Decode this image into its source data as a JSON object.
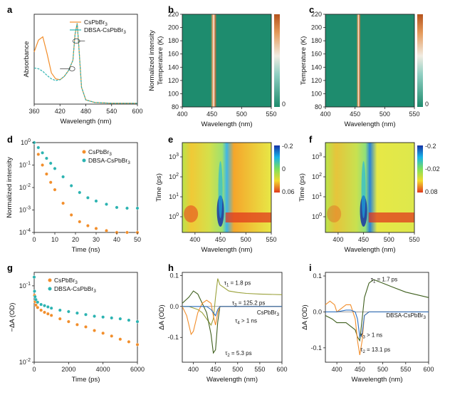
{
  "colors": {
    "orange": "#F28E2B",
    "teal": "#2BB3B1",
    "olive": "#9AA13A",
    "darkgreen": "#3F5F1E",
    "blue": "#2C6FBF"
  },
  "panels": [
    {
      "id": "a",
      "letter": "a"
    },
    {
      "id": "b",
      "letter": "b"
    },
    {
      "id": "c",
      "letter": "c"
    },
    {
      "id": "d",
      "letter": "d"
    },
    {
      "id": "e",
      "letter": "e"
    },
    {
      "id": "f",
      "letter": "f"
    },
    {
      "id": "g",
      "letter": "g"
    },
    {
      "id": "h",
      "letter": "h"
    },
    {
      "id": "i",
      "letter": "i"
    }
  ],
  "chart_data": [
    {
      "panel": "a",
      "type": "line",
      "xlabel": "Wavelength (nm)",
      "ylabel": "Absorbance",
      "xlim": [
        360,
        600
      ],
      "xticks": [
        "360",
        "420",
        "480",
        "540",
        "600"
      ],
      "legend": [
        "CsPbBr3",
        "DBSA-CsPbBr3"
      ],
      "legend_position": "top-right",
      "series": [
        {
          "name": "CsPbBr3",
          "color": "orange",
          "x": [
            360,
            370,
            380,
            390,
            400,
            410,
            420,
            430,
            440,
            450,
            455,
            460,
            465,
            470,
            480,
            500,
            540,
            600
          ],
          "y": [
            0.62,
            0.76,
            0.8,
            0.6,
            0.37,
            0.3,
            0.29,
            0.33,
            0.4,
            0.52,
            0.83,
            0.96,
            0.6,
            0.2,
            0.05,
            0.02,
            0.01,
            0.01
          ]
        },
        {
          "name": "DBSA-CsPbBr3",
          "color": "teal",
          "x": [
            360,
            370,
            380,
            390,
            400,
            410,
            420,
            430,
            440,
            450,
            455,
            460,
            465,
            470,
            480,
            500,
            540,
            600
          ],
          "y": [
            0.43,
            0.42,
            0.39,
            0.34,
            0.3,
            0.28,
            0.29,
            0.33,
            0.4,
            0.52,
            0.83,
            0.96,
            0.6,
            0.2,
            0.05,
            0.02,
            0.01,
            0.01
          ]
        }
      ]
    },
    {
      "panel": "b",
      "type": "heatmap",
      "xlabel": "Wavelength (nm)",
      "ylabel": "Normalized intensity",
      "y2label": "Temperature (K)",
      "xlim": [
        400,
        550
      ],
      "xticks": [
        "400",
        "450",
        "500",
        "550"
      ],
      "ylim": [
        80,
        220
      ],
      "yticks": [
        "80",
        "100",
        "120",
        "140",
        "160",
        "180",
        "200",
        "220"
      ],
      "colorbar_ticks": [
        "0"
      ],
      "peak_center_nm": 453,
      "peak_width_nm": 10
    },
    {
      "panel": "c",
      "type": "heatmap",
      "xlabel": "Wavelength (nm)",
      "y2label": "Temperature (K)",
      "xlim": [
        400,
        550
      ],
      "xticks": [
        "400",
        "450",
        "500",
        "550"
      ],
      "ylim": [
        80,
        220
      ],
      "yticks": [
        "80",
        "100",
        "120",
        "140",
        "160",
        "180",
        "200",
        "220"
      ],
      "colorbar_ticks": [
        "0"
      ],
      "peak_center_nm": 456,
      "peak_width_nm": 7
    },
    {
      "panel": "d",
      "type": "scatter",
      "xlabel": "Time (ns)",
      "ylabel": "Normalized intensity",
      "xlim": [
        0,
        50
      ],
      "xticks": [
        "0",
        "10",
        "20",
        "30",
        "40",
        "50"
      ],
      "yticks": [
        "10-4",
        "10-3",
        "10-2",
        "10-1",
        "100"
      ],
      "ylog": true,
      "ylim": [
        0.0001,
        1
      ],
      "legend": [
        "CsPbBr3",
        "DBSA-CsPbBr3"
      ],
      "legend_position": "top-right",
      "series": [
        {
          "name": "CsPbBr3",
          "color": "orange",
          "x": [
            0,
            2,
            4,
            6,
            8,
            10,
            14,
            18,
            22,
            26,
            30,
            35,
            40,
            45,
            50
          ],
          "y": [
            1,
            0.3,
            0.1,
            0.04,
            0.017,
            0.008,
            0.002,
            0.0006,
            0.0003,
            0.0002,
            0.00015,
            0.00012,
            0.0001,
            0.0001,
            0.0001
          ]
        },
        {
          "name": "DBSA-CsPbBr3",
          "color": "teal",
          "x": [
            0,
            2,
            4,
            6,
            8,
            10,
            14,
            18,
            22,
            26,
            30,
            35,
            40,
            45,
            50
          ],
          "y": [
            1,
            0.6,
            0.35,
            0.2,
            0.12,
            0.07,
            0.03,
            0.012,
            0.006,
            0.0035,
            0.0025,
            0.0018,
            0.0013,
            0.0012,
            0.0012
          ]
        }
      ]
    },
    {
      "panel": "e",
      "type": "heatmap",
      "xlabel": "Wavelength (nm)",
      "ylabel": "Time (ps)",
      "xlim": [
        375,
        550
      ],
      "xticks": [
        "400",
        "450",
        "500",
        "550"
      ],
      "yticks": [
        "100",
        "101",
        "102",
        "103"
      ],
      "colorbar_ticks": [
        "-0.2",
        "0",
        "0.06"
      ]
    },
    {
      "panel": "f",
      "type": "heatmap",
      "xlabel": "Wavelength (nm)",
      "ylabel": "Time (ps)",
      "xlim": [
        375,
        550
      ],
      "xticks": [
        "400",
        "450",
        "500",
        "550"
      ],
      "yticks": [
        "100",
        "101",
        "102",
        "103"
      ],
      "colorbar_ticks": [
        "-0.2",
        "-0.02",
        "0.08"
      ]
    },
    {
      "panel": "g",
      "type": "scatter",
      "xlabel": "Time (ps)",
      "ylabel": "−ΔA (OD)",
      "xlim": [
        0,
        6000
      ],
      "xticks": [
        "0",
        "2000",
        "4000",
        "6000"
      ],
      "yticks": [
        "10-2",
        "10-1"
      ],
      "ylog": true,
      "ylim": [
        0.01,
        0.15
      ],
      "legend": [
        "CsPbBr3",
        "DBSA-CsPbBr3"
      ],
      "legend_position": "top-right",
      "series": [
        {
          "name": "CsPbBr3",
          "color": "orange",
          "x": [
            0,
            20,
            50,
            100,
            200,
            400,
            600,
            800,
            1000,
            1500,
            2000,
            2500,
            3000,
            3500,
            4000,
            4500,
            5000,
            5500,
            6000
          ],
          "y": [
            0.13,
            0.075,
            0.062,
            0.056,
            0.052,
            0.048,
            0.045,
            0.043,
            0.041,
            0.037,
            0.034,
            0.031,
            0.029,
            0.026,
            0.024,
            0.022,
            0.02,
            0.0185,
            0.017
          ]
        },
        {
          "name": "DBSA-CsPbBr3",
          "color": "teal",
          "x": [
            0,
            20,
            50,
            100,
            200,
            400,
            600,
            800,
            1000,
            1500,
            2000,
            2500,
            3000,
            3500,
            4000,
            4500,
            5000,
            5500,
            6000
          ],
          "y": [
            0.13,
            0.085,
            0.072,
            0.066,
            0.061,
            0.057,
            0.055,
            0.053,
            0.051,
            0.048,
            0.046,
            0.044,
            0.042,
            0.04,
            0.039,
            0.038,
            0.037,
            0.0355,
            0.034
          ]
        }
      ]
    },
    {
      "panel": "h",
      "type": "line",
      "xlabel": "Wavelength (nm)",
      "ylabel": "ΔA (OD)",
      "xlim": [
        375,
        600
      ],
      "xticks": [
        "400",
        "450",
        "500",
        "550",
        "600"
      ],
      "ylim": [
        -0.18,
        0.11
      ],
      "yticks": [
        "-0.1",
        "0.0",
        "0.1"
      ],
      "sample_label": "CsPbBr3",
      "annotations": [
        "τ1 = 1.8 ps",
        "τ3 = 125.2 ps",
        "τ4 > 1 ns",
        "τ2 = 5.3 ps"
      ],
      "series": [
        {
          "name": "τ1",
          "color": "olive",
          "x": [
            375,
            390,
            400,
            410,
            420,
            430,
            440,
            445,
            450,
            455,
            460,
            470,
            480,
            500,
            520,
            550,
            600
          ],
          "y": [
            0.0,
            0.0,
            -0.005,
            -0.01,
            -0.02,
            -0.04,
            -0.06,
            -0.04,
            0.03,
            0.09,
            0.07,
            0.06,
            0.05,
            0.045,
            0.042,
            0.04,
            0.038
          ]
        },
        {
          "name": "τ2",
          "color": "darkgreen",
          "x": [
            375,
            390,
            400,
            410,
            420,
            430,
            440,
            445,
            450,
            455,
            460,
            470,
            480,
            500,
            520,
            550,
            600
          ],
          "y": [
            0.01,
            0.03,
            0.05,
            0.04,
            0.01,
            -0.02,
            -0.09,
            -0.15,
            -0.14,
            -0.05,
            0.0,
            0.0,
            0.0,
            0.0,
            0.0,
            0.0,
            0.0
          ]
        },
        {
          "name": "τ3",
          "color": "orange",
          "x": [
            375,
            385,
            395,
            400,
            410,
            420,
            430,
            440,
            445,
            450,
            455,
            460,
            470,
            480,
            500,
            550,
            600
          ],
          "y": [
            0.0,
            -0.03,
            -0.09,
            -0.08,
            -0.02,
            0.01,
            0.02,
            0.01,
            -0.03,
            -0.06,
            -0.02,
            0.0,
            0.0,
            0.0,
            0.0,
            0.0,
            0.0
          ]
        },
        {
          "name": "τ4",
          "color": "blue",
          "x": [
            375,
            400,
            420,
            430,
            440,
            445,
            450,
            455,
            460,
            470,
            500,
            550,
            600
          ],
          "y": [
            0.0,
            0.0,
            0.0,
            0.0,
            -0.01,
            -0.02,
            -0.03,
            -0.01,
            0.0,
            0.0,
            0.0,
            0.0,
            0.0
          ]
        }
      ]
    },
    {
      "panel": "i",
      "type": "line",
      "xlabel": "Wavelength (nm)",
      "ylabel": "ΔA (OD)",
      "xlim": [
        375,
        600
      ],
      "xticks": [
        "400",
        "450",
        "500",
        "550",
        "600"
      ],
      "ylim": [
        -0.14,
        0.11
      ],
      "yticks": [
        "-0.1",
        "0.0",
        "0.1"
      ],
      "sample_label": "DBSA-CsPbBr3",
      "annotations": [
        "τ1 = 1.7 ps",
        "τ3 > 1 ns",
        "τ2 = 13.1 ps"
      ],
      "series": [
        {
          "name": "τ1",
          "color": "darkgreen",
          "x": [
            375,
            390,
            400,
            410,
            420,
            430,
            440,
            445,
            450,
            455,
            460,
            470,
            480,
            500,
            520,
            550,
            600
          ],
          "y": [
            -0.01,
            -0.02,
            -0.03,
            -0.03,
            -0.03,
            -0.04,
            -0.05,
            -0.07,
            -0.08,
            -0.02,
            0.04,
            0.08,
            0.09,
            0.08,
            0.07,
            0.055,
            0.04
          ]
        },
        {
          "name": "τ2",
          "color": "orange",
          "x": [
            375,
            385,
            395,
            400,
            410,
            420,
            430,
            440,
            445,
            450,
            455,
            460,
            470,
            480,
            500,
            550,
            600
          ],
          "y": [
            0.02,
            0.03,
            0.02,
            0.0,
            0.01,
            0.02,
            0.02,
            -0.02,
            -0.08,
            -0.12,
            -0.08,
            -0.01,
            0.0,
            0.0,
            0.0,
            0.0,
            0.0
          ]
        },
        {
          "name": "τ3",
          "color": "blue",
          "x": [
            375,
            400,
            420,
            430,
            440,
            445,
            450,
            455,
            460,
            470,
            500,
            550,
            600
          ],
          "y": [
            0.0,
            0.0,
            0.005,
            0.005,
            0.0,
            -0.02,
            -0.07,
            -0.06,
            -0.01,
            0.0,
            0.0,
            0.0,
            0.0
          ]
        }
      ]
    }
  ]
}
